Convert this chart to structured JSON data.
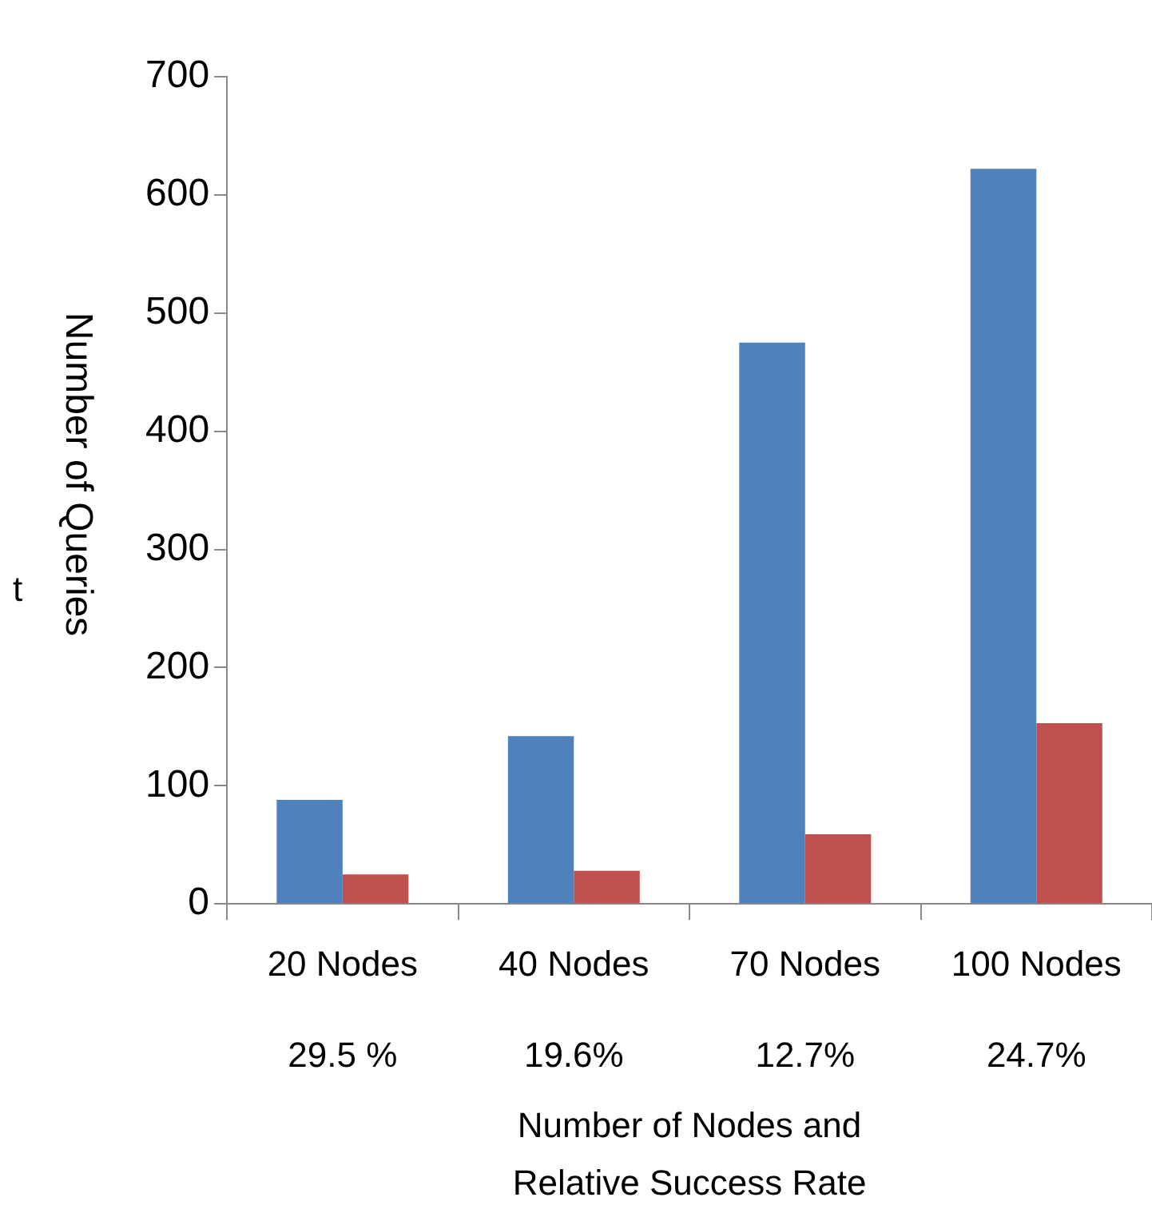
{
  "chart_data": {
    "type": "bar",
    "ylabel": "Number of Queries",
    "categories": [
      "20 Nodes\n29.5 %",
      "40 Nodes\n19.6%",
      "70 Nodes\n12.7%",
      "100 Nodes\n24.7%"
    ],
    "series": [
      {
        "color": "#4f81bd",
        "values": [
          88,
          142,
          475,
          622
        ]
      },
      {
        "color": "#c0504d",
        "values": [
          25,
          28,
          59,
          153
        ]
      }
    ],
    "ylim": [
      0,
      700
    ],
    "yticks": [
      0,
      100,
      200,
      300,
      400,
      500,
      600,
      700
    ],
    "grid": false,
    "legend": false,
    "annotations": [
      "Number of Nodes and\nRelative Success Rate",
      "t"
    ]
  }
}
